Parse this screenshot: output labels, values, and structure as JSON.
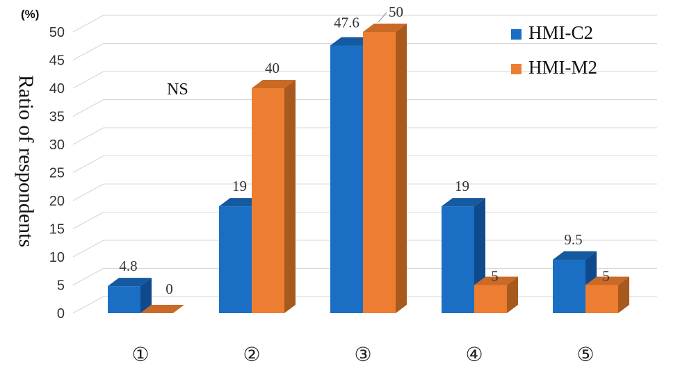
{
  "chart_data": {
    "type": "bar",
    "categories": [
      "①",
      "②",
      "③",
      "④",
      "⑤"
    ],
    "series": [
      {
        "name": "HMI-C2",
        "values": [
          4.8,
          19,
          47.6,
          19,
          9.5
        ],
        "labels": [
          "4.8",
          "19",
          "47.6",
          "19",
          "9.5"
        ],
        "color": "#1a6fc4",
        "side_color": "#0e4a8c",
        "top_color": "#155a9f"
      },
      {
        "name": "HMI-M2",
        "values": [
          0,
          40,
          50,
          5,
          5
        ],
        "labels": [
          "0",
          "40",
          "50",
          "5",
          "5"
        ],
        "color": "#ed7d31",
        "side_color": "#a85a1e",
        "top_color": "#c96a27"
      }
    ],
    "ylim": [
      0,
      50
    ],
    "yticks": [
      "0",
      "5",
      "10",
      "15",
      "20",
      "25",
      "30",
      "35",
      "40",
      "45",
      "50"
    ],
    "ylabel": "Ratio of respondents",
    "yunit": "(%)",
    "annotation": "NS",
    "legend_position": "top-right",
    "grid": true,
    "style": "3d"
  }
}
